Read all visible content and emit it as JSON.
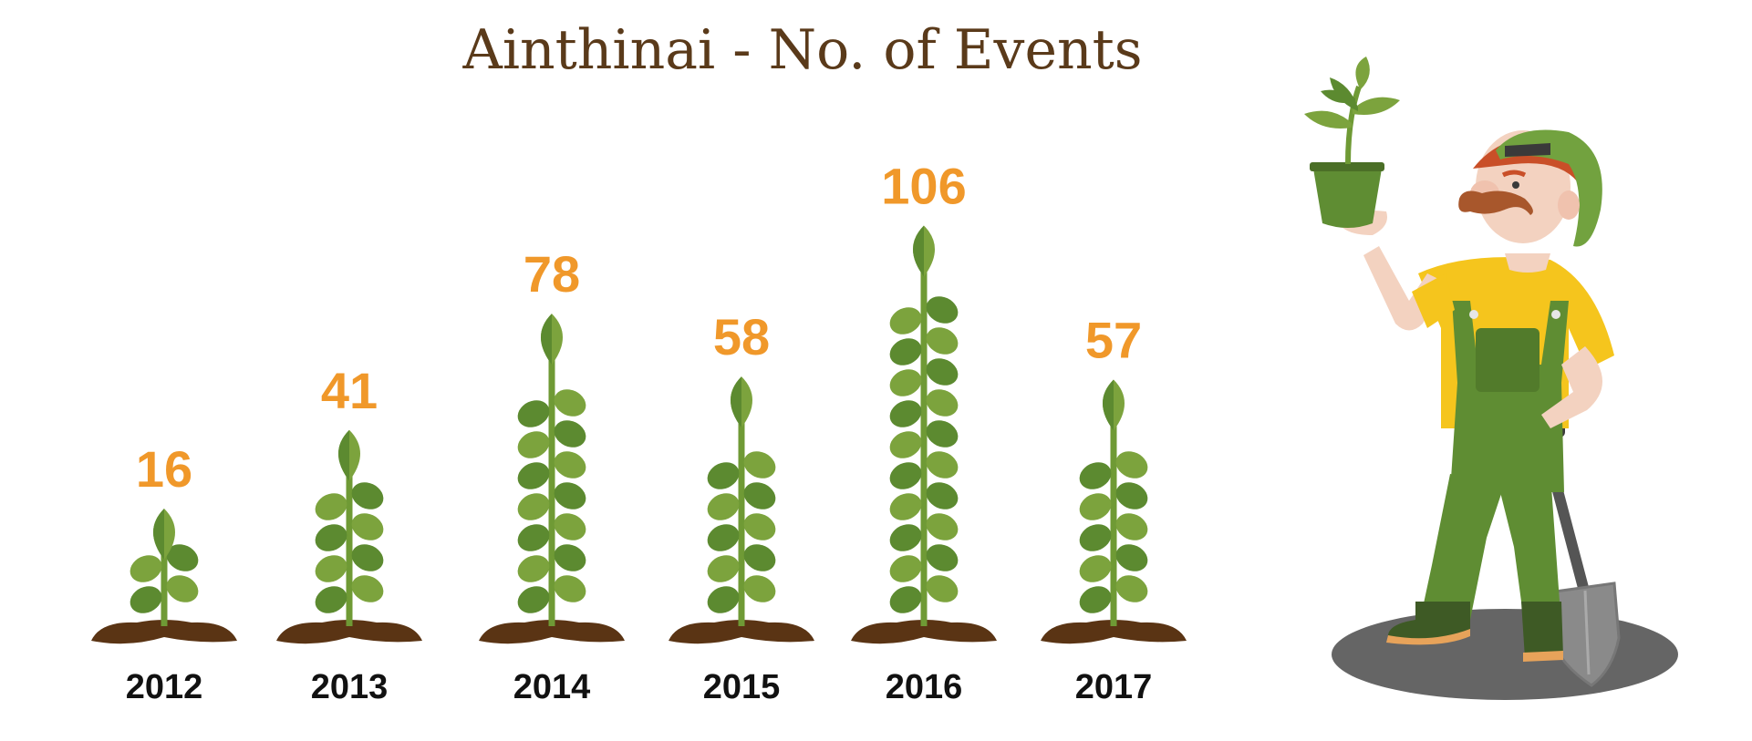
{
  "chart_data": {
    "type": "bar",
    "title": "Ainthinai - No. of Events",
    "categories": [
      "2012",
      "2013",
      "2014",
      "2015",
      "2016",
      "2017"
    ],
    "values": [
      16,
      41,
      78,
      58,
      106,
      57
    ],
    "data_labels": [
      "16",
      "41",
      "78",
      "58",
      "106",
      "57"
    ],
    "xlabel": "",
    "ylabel": "",
    "legend": "none",
    "grid": false,
    "colors": {
      "title": "#5a3a1a",
      "value_label": "#f0982a",
      "category_label": "#111111",
      "leaf_light": "#7ca33d",
      "leaf_dark": "#5c8a30",
      "stem": "#6f9a35",
      "soil": "#5a3414"
    }
  },
  "illustration": {
    "figure": "gardener-with-potted-plant-and-shovel"
  }
}
